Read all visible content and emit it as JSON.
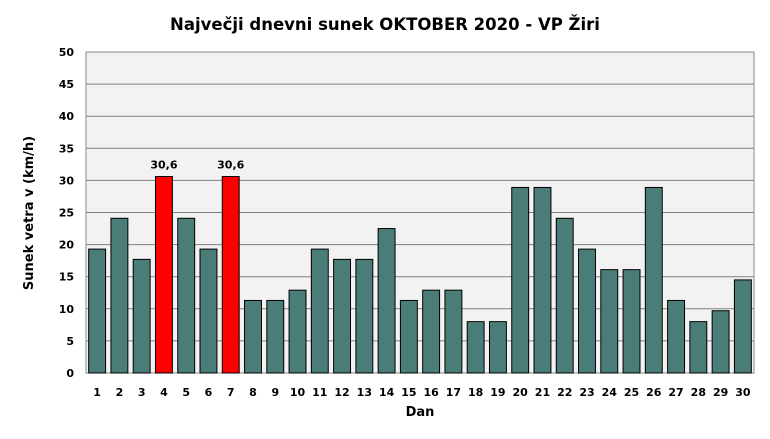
{
  "chart_data": {
    "type": "bar",
    "title": "Največji dnevni sunek OKTOBER  2020 - VP Žiri",
    "xlabel": "Dan",
    "ylabel": "Sunek vetra  v (km/h)",
    "ylim": [
      0,
      50
    ],
    "yticks": [
      "0",
      "5",
      "10",
      "15",
      "20",
      "25",
      "30",
      "35",
      "40",
      "45",
      "50"
    ],
    "grid": true,
    "legend": "none",
    "categories": [
      "1",
      "2",
      "3",
      "4",
      "5",
      "6",
      "7",
      "8",
      "9",
      "10",
      "11",
      "12",
      "13",
      "14",
      "15",
      "16",
      "17",
      "18",
      "19",
      "20",
      "21",
      "22",
      "23",
      "24",
      "25",
      "26",
      "27",
      "28",
      "29",
      "30"
    ],
    "values": [
      19.3,
      24.1,
      17.7,
      30.6,
      24.1,
      19.3,
      30.6,
      11.3,
      11.3,
      12.9,
      19.3,
      17.7,
      17.7,
      22.5,
      11.3,
      12.9,
      12.9,
      8.0,
      8.0,
      28.9,
      28.9,
      24.1,
      19.3,
      16.1,
      16.1,
      28.9,
      11.3,
      8.0,
      9.7,
      14.5
    ],
    "highlight_indices": [
      3,
      6
    ],
    "data_labels": [
      {
        "index": 3,
        "text": "30,6"
      },
      {
        "index": 6,
        "text": "30,6"
      }
    ],
    "colors": {
      "bar": "#4a7d77",
      "highlight": "#ff0000",
      "bar_stroke": "#000000",
      "plot_bg": "#f2f2f2",
      "grid": "#808080"
    }
  }
}
